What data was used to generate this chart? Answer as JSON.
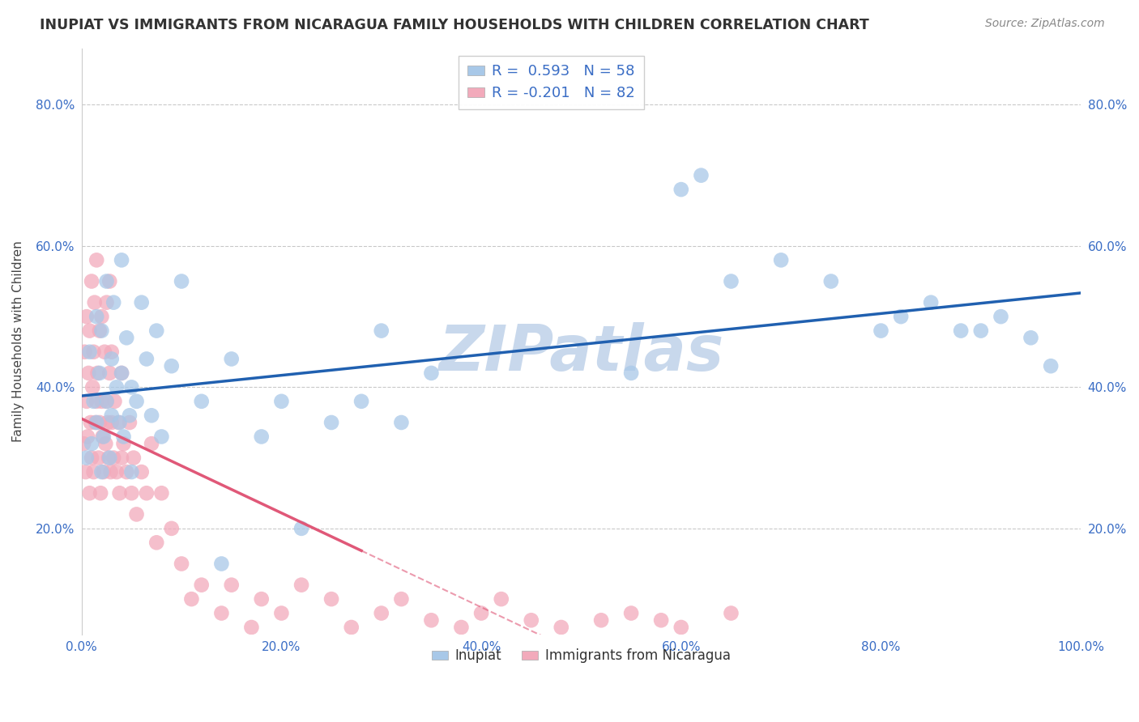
{
  "title": "INUPIAT VS IMMIGRANTS FROM NICARAGUA FAMILY HOUSEHOLDS WITH CHILDREN CORRELATION CHART",
  "source": "Source: ZipAtlas.com",
  "ylabel": "Family Households with Children",
  "xlim": [
    0.0,
    1.0
  ],
  "ylim": [
    0.05,
    0.88
  ],
  "legend_label1": "R =  0.593   N = 58",
  "legend_label2": "R = -0.201   N = 82",
  "legend_label1_bottom": "Inupiat",
  "legend_label2_bottom": "Immigrants from Nicaragua",
  "color_blue": "#A8C8E8",
  "color_pink": "#F2AABB",
  "color_blue_line": "#2060B0",
  "color_pink_line": "#E05878",
  "color_text_blue": "#3A6DC5",
  "watermark_color": "#C8D8EC",
  "background": "#FFFFFF",
  "inupiat_x": [
    0.005,
    0.008,
    0.01,
    0.012,
    0.015,
    0.015,
    0.018,
    0.02,
    0.02,
    0.022,
    0.025,
    0.025,
    0.028,
    0.03,
    0.03,
    0.032,
    0.035,
    0.038,
    0.04,
    0.04,
    0.042,
    0.045,
    0.048,
    0.05,
    0.05,
    0.055,
    0.06,
    0.065,
    0.07,
    0.075,
    0.08,
    0.09,
    0.1,
    0.12,
    0.14,
    0.15,
    0.18,
    0.2,
    0.22,
    0.25,
    0.28,
    0.3,
    0.32,
    0.35,
    0.55,
    0.6,
    0.62,
    0.65,
    0.7,
    0.75,
    0.8,
    0.82,
    0.85,
    0.88,
    0.9,
    0.92,
    0.95,
    0.97
  ],
  "inupiat_y": [
    0.3,
    0.45,
    0.32,
    0.38,
    0.5,
    0.35,
    0.42,
    0.28,
    0.48,
    0.33,
    0.38,
    0.55,
    0.3,
    0.36,
    0.44,
    0.52,
    0.4,
    0.35,
    0.42,
    0.58,
    0.33,
    0.47,
    0.36,
    0.28,
    0.4,
    0.38,
    0.52,
    0.44,
    0.36,
    0.48,
    0.33,
    0.43,
    0.55,
    0.38,
    0.15,
    0.44,
    0.33,
    0.38,
    0.2,
    0.35,
    0.38,
    0.48,
    0.35,
    0.42,
    0.42,
    0.68,
    0.7,
    0.55,
    0.58,
    0.55,
    0.48,
    0.5,
    0.52,
    0.48,
    0.48,
    0.5,
    0.47,
    0.43
  ],
  "nicaragua_x": [
    0.002,
    0.003,
    0.004,
    0.005,
    0.005,
    0.006,
    0.007,
    0.008,
    0.008,
    0.009,
    0.01,
    0.01,
    0.011,
    0.012,
    0.012,
    0.013,
    0.014,
    0.015,
    0.015,
    0.016,
    0.017,
    0.018,
    0.018,
    0.019,
    0.02,
    0.02,
    0.021,
    0.022,
    0.023,
    0.024,
    0.025,
    0.025,
    0.026,
    0.027,
    0.028,
    0.028,
    0.029,
    0.03,
    0.03,
    0.032,
    0.033,
    0.035,
    0.037,
    0.038,
    0.04,
    0.04,
    0.042,
    0.045,
    0.048,
    0.05,
    0.052,
    0.055,
    0.06,
    0.065,
    0.07,
    0.075,
    0.08,
    0.09,
    0.1,
    0.11,
    0.12,
    0.14,
    0.15,
    0.17,
    0.18,
    0.2,
    0.22,
    0.25,
    0.27,
    0.3,
    0.32,
    0.35,
    0.38,
    0.4,
    0.42,
    0.45,
    0.48,
    0.52,
    0.55,
    0.58,
    0.6,
    0.65
  ],
  "nicaragua_y": [
    0.32,
    0.45,
    0.28,
    0.38,
    0.5,
    0.33,
    0.42,
    0.25,
    0.48,
    0.35,
    0.3,
    0.55,
    0.4,
    0.28,
    0.45,
    0.52,
    0.35,
    0.38,
    0.58,
    0.42,
    0.3,
    0.35,
    0.48,
    0.25,
    0.38,
    0.5,
    0.33,
    0.28,
    0.45,
    0.32,
    0.38,
    0.52,
    0.35,
    0.3,
    0.42,
    0.55,
    0.28,
    0.35,
    0.45,
    0.3,
    0.38,
    0.28,
    0.35,
    0.25,
    0.3,
    0.42,
    0.32,
    0.28,
    0.35,
    0.25,
    0.3,
    0.22,
    0.28,
    0.25,
    0.32,
    0.18,
    0.25,
    0.2,
    0.15,
    0.1,
    0.12,
    0.08,
    0.12,
    0.06,
    0.1,
    0.08,
    0.12,
    0.1,
    0.06,
    0.08,
    0.1,
    0.07,
    0.06,
    0.08,
    0.1,
    0.07,
    0.06,
    0.07,
    0.08,
    0.07,
    0.06,
    0.08
  ]
}
